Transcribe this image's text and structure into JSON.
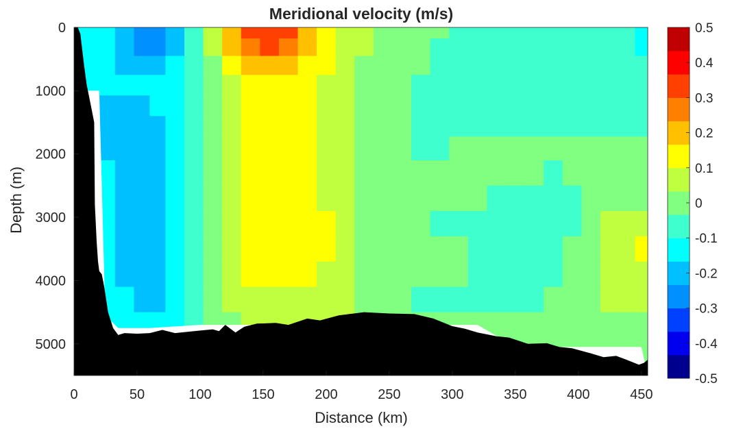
{
  "chart_data": {
    "type": "heatmap",
    "title": "Meridional velocity (m/s)",
    "xlabel": "Distance (km)",
    "ylabel": "Depth (m)",
    "xlim": [
      0,
      455
    ],
    "ylim": [
      5500,
      0
    ],
    "y_reversed": true,
    "x_ticks": [
      0,
      50,
      100,
      150,
      200,
      250,
      300,
      350,
      400,
      450
    ],
    "y_ticks": [
      0,
      1000,
      2000,
      3000,
      4000,
      5000
    ],
    "colorbar": {
      "range": [
        -0.5,
        0.5
      ],
      "step": 0.05,
      "tick_values": [
        0.5,
        0.4,
        0.3,
        0.2,
        0.1,
        0,
        -0.1,
        -0.2,
        -0.3,
        -0.4,
        -0.5
      ],
      "tick_labels": [
        "0.5",
        "0.4",
        "0.3",
        "0.2",
        "0.1",
        "0",
        "-0.1",
        "-0.2",
        "-0.3",
        "-0.4",
        "-0.5"
      ],
      "colors": [
        "#00008F",
        "#0000EF",
        "#0040FF",
        "#0090FF",
        "#00C0FF",
        "#00FFFF",
        "#40FFCF",
        "#80FF80",
        "#C0FF40",
        "#FFFF00",
        "#FFC000",
        "#FF8000",
        "#FF4000",
        "#FF0000",
        "#C00000"
      ]
    },
    "x_centers_km": [
      10,
      25,
      40,
      55,
      65,
      80,
      95,
      110,
      125,
      140,
      155,
      170,
      185,
      200,
      215,
      230,
      245,
      260,
      275,
      290,
      305,
      320,
      335,
      350,
      365,
      380,
      395,
      410,
      425,
      440,
      450
    ],
    "depth_centers_m": [
      50,
      300,
      600,
      900,
      1250,
      1550,
      1900,
      2300,
      2700,
      3100,
      3500,
      3900,
      4300,
      4700,
      5000
    ],
    "velocity_ms": [
      [
        -0.15,
        -0.16,
        -0.2,
        -0.25,
        -0.25,
        -0.2,
        -0.1,
        0.05,
        0.22,
        0.3,
        0.33,
        0.3,
        0.22,
        0.12,
        0.08,
        0.05,
        0.02,
        0,
        0,
        -0.02,
        -0.05,
        -0.05,
        -0.05,
        -0.05,
        -0.05,
        -0.05,
        -0.05,
        -0.05,
        -0.05,
        -0.05,
        -0.12
      ],
      [
        -0.15,
        -0.16,
        -0.2,
        -0.27,
        -0.25,
        -0.2,
        -0.1,
        0.05,
        0.2,
        0.28,
        0.31,
        0.28,
        0.2,
        0.12,
        0.08,
        0.05,
        0.02,
        0,
        -0.02,
        -0.05,
        -0.05,
        -0.05,
        -0.05,
        -0.05,
        -0.05,
        -0.05,
        -0.05,
        -0.05,
        -0.05,
        -0.05,
        -0.12
      ],
      [
        -0.14,
        -0.16,
        -0.18,
        -0.2,
        -0.2,
        -0.15,
        -0.1,
        0,
        0.12,
        0.18,
        0.2,
        0.18,
        0.15,
        0.1,
        0.06,
        0.03,
        0.02,
        0,
        -0.03,
        -0.05,
        -0.05,
        -0.05,
        -0.05,
        -0.05,
        -0.05,
        -0.05,
        -0.05,
        -0.05,
        -0.05,
        -0.05,
        -0.05
      ],
      [
        -0.14,
        -0.16,
        -0.15,
        -0.15,
        -0.15,
        -0.12,
        -0.08,
        -0.02,
        0.05,
        0.1,
        0.1,
        0.1,
        0.1,
        0.08,
        0.05,
        0.02,
        0,
        -0.02,
        -0.05,
        -0.08,
        -0.1,
        -0.1,
        -0.08,
        -0.05,
        -0.05,
        -0.05,
        -0.05,
        -0.05,
        -0.05,
        -0.05,
        -0.05
      ],
      [
        -0.14,
        -0.22,
        -0.22,
        -0.18,
        -0.15,
        -0.12,
        -0.08,
        -0.02,
        0.04,
        0.1,
        0.1,
        0.1,
        0.1,
        0.08,
        0.05,
        0.02,
        0,
        -0.03,
        -0.05,
        -0.05,
        -0.05,
        -0.05,
        -0.05,
        -0.05,
        -0.05,
        -0.05,
        -0.05,
        -0.05,
        -0.05,
        -0.05,
        -0.05
      ],
      [
        -0.14,
        -0.22,
        -0.22,
        -0.2,
        -0.18,
        -0.14,
        -0.08,
        -0.02,
        0.05,
        0.1,
        0.1,
        0.1,
        0.1,
        0.08,
        0.05,
        0.02,
        0,
        -0.02,
        -0.05,
        -0.05,
        -0.05,
        -0.05,
        -0.05,
        -0.05,
        -0.05,
        -0.05,
        -0.05,
        -0.05,
        -0.05,
        -0.05,
        -0.05
      ],
      [
        -0.14,
        -0.18,
        -0.22,
        -0.2,
        -0.18,
        -0.14,
        -0.08,
        -0.02,
        0.05,
        0.1,
        0.1,
        0.1,
        0.1,
        0.08,
        0.05,
        0.02,
        0,
        -0.02,
        -0.05,
        -0.05,
        0,
        0,
        0,
        0,
        0,
        0,
        0,
        0,
        0,
        0,
        0
      ],
      [
        -0.14,
        -0.16,
        -0.22,
        -0.22,
        -0.18,
        -0.14,
        -0.08,
        -0.02,
        0.05,
        0.1,
        0.1,
        0.1,
        0.1,
        0.08,
        0.05,
        0.02,
        0,
        0,
        0,
        0,
        0,
        0,
        0,
        0,
        0,
        -0.05,
        0,
        0,
        0,
        0,
        0
      ],
      [
        -0.14,
        -0.16,
        -0.22,
        -0.22,
        -0.2,
        -0.15,
        -0.08,
        -0.02,
        0.05,
        0.1,
        0.1,
        0.1,
        0.1,
        0.08,
        0.05,
        0.02,
        0,
        0,
        0,
        0,
        0,
        0,
        -0.05,
        -0.05,
        -0.05,
        -0.05,
        -0.05,
        0,
        0,
        0,
        0
      ],
      [
        -0.14,
        -0.16,
        -0.22,
        -0.22,
        -0.2,
        -0.15,
        -0.08,
        -0.02,
        0.05,
        0.12,
        0.12,
        0.12,
        0.12,
        0.1,
        0.05,
        0.02,
        0,
        0,
        0,
        -0.05,
        -0.05,
        -0.05,
        -0.05,
        -0.05,
        -0.05,
        -0.05,
        -0.05,
        0,
        0.05,
        0.05,
        0.05
      ],
      [
        -0.14,
        -0.16,
        -0.22,
        -0.22,
        -0.2,
        -0.15,
        -0.08,
        -0.02,
        0.05,
        0.12,
        0.12,
        0.12,
        0.12,
        0.1,
        0.05,
        0.02,
        0,
        0,
        0,
        0,
        0,
        -0.05,
        -0.05,
        -0.1,
        -0.1,
        -0.05,
        0,
        0,
        0.05,
        0.05,
        0.1
      ],
      [
        -0.14,
        -0.16,
        -0.18,
        -0.18,
        -0.18,
        -0.14,
        -0.08,
        -0.02,
        0.05,
        0.1,
        0.1,
        0.1,
        0.1,
        0.08,
        0.05,
        0.02,
        0,
        0,
        0,
        0,
        0,
        -0.05,
        -0.05,
        -0.05,
        -0.05,
        -0.05,
        0,
        0,
        0.05,
        0.05,
        0.05
      ],
      [
        -0.14,
        -0.15,
        -0.15,
        -0.22,
        -0.2,
        -0.14,
        -0.08,
        -0.02,
        0.05,
        0.08,
        0.08,
        0.08,
        0.08,
        0.06,
        0.05,
        0.02,
        0,
        0,
        -0.05,
        -0.05,
        -0.05,
        -0.05,
        -0.1,
        -0.05,
        -0.05,
        0,
        0,
        0,
        0.05,
        0.05,
        0.05
      ],
      [
        -0.14,
        -0.14,
        -0.15,
        -0.15,
        -0.15,
        -0.12,
        -0.08,
        -0.02,
        0.02,
        0.05,
        0.05,
        0.05,
        0.05,
        0.05,
        0.05,
        0.02,
        0,
        0,
        0,
        0,
        0,
        0,
        0,
        0,
        0,
        0,
        0,
        0,
        0,
        0,
        0
      ],
      [
        -0.14,
        -0.14,
        -0.14,
        -0.14,
        -0.14,
        -0.1,
        -0.06,
        -0.02,
        0,
        0.02,
        0.02,
        0.02,
        0.02,
        0.02,
        0.02,
        0,
        0,
        0,
        0,
        0,
        0,
        0,
        0,
        0,
        0,
        0,
        0,
        0,
        0,
        0,
        0
      ]
    ],
    "data_bottom_depth_m": [
      [
        0,
        1000
      ],
      [
        5,
        1000
      ],
      [
        10,
        1000
      ],
      [
        15,
        1000
      ],
      [
        20,
        1000
      ],
      [
        25,
        4700
      ],
      [
        30,
        4650
      ],
      [
        35,
        4750
      ],
      [
        40,
        4750
      ],
      [
        60,
        4750
      ],
      [
        100,
        4700
      ],
      [
        130,
        4700
      ],
      [
        150,
        4700
      ],
      [
        170,
        4700
      ],
      [
        200,
        4700
      ],
      [
        250,
        4700
      ],
      [
        300,
        4700
      ],
      [
        320,
        4700
      ],
      [
        350,
        5050
      ],
      [
        400,
        5050
      ],
      [
        450,
        5050
      ]
    ],
    "bathymetry": [
      [
        0,
        0
      ],
      [
        3,
        0
      ],
      [
        5,
        100
      ],
      [
        8,
        600
      ],
      [
        10,
        900
      ],
      [
        12,
        1100
      ],
      [
        14,
        1300
      ],
      [
        16,
        1500
      ],
      [
        16.5,
        2800
      ],
      [
        18,
        3400
      ],
      [
        19,
        3700
      ],
      [
        20,
        3850
      ],
      [
        22,
        3900
      ],
      [
        24,
        4100
      ],
      [
        27,
        4500
      ],
      [
        31,
        4750
      ],
      [
        35,
        4860
      ],
      [
        40,
        4830
      ],
      [
        50,
        4840
      ],
      [
        60,
        4830
      ],
      [
        70,
        4780
      ],
      [
        80,
        4830
      ],
      [
        90,
        4810
      ],
      [
        100,
        4790
      ],
      [
        110,
        4770
      ],
      [
        115,
        4800
      ],
      [
        120,
        4700
      ],
      [
        128,
        4820
      ],
      [
        135,
        4730
      ],
      [
        145,
        4680
      ],
      [
        160,
        4670
      ],
      [
        170,
        4700
      ],
      [
        185,
        4600
      ],
      [
        195,
        4630
      ],
      [
        210,
        4550
      ],
      [
        230,
        4500
      ],
      [
        250,
        4520
      ],
      [
        270,
        4530
      ],
      [
        285,
        4600
      ],
      [
        300,
        4720
      ],
      [
        310,
        4760
      ],
      [
        320,
        4820
      ],
      [
        335,
        4880
      ],
      [
        345,
        4900
      ],
      [
        360,
        5000
      ],
      [
        375,
        4990
      ],
      [
        385,
        5050
      ],
      [
        395,
        5070
      ],
      [
        410,
        5150
      ],
      [
        420,
        5210
      ],
      [
        430,
        5190
      ],
      [
        438,
        5250
      ],
      [
        448,
        5330
      ],
      [
        452,
        5300
      ],
      [
        455,
        5250
      ]
    ]
  }
}
